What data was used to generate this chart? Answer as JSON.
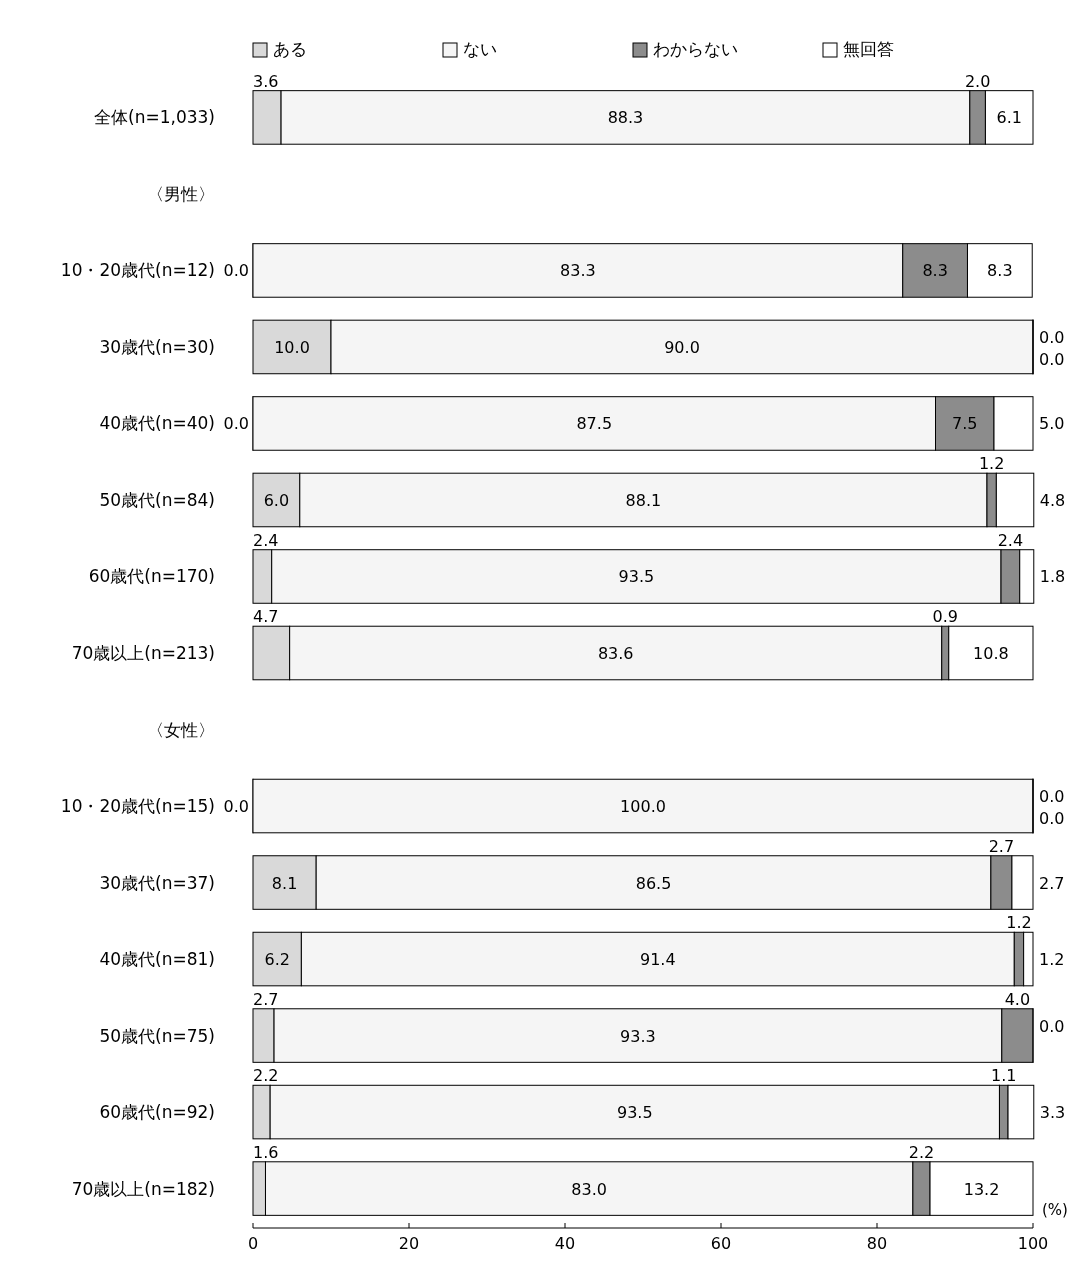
{
  "chart_data": {
    "type": "bar",
    "orientation": "horizontal",
    "stacked": true,
    "categories": [
      "全体(n=1,033)",
      "〈男性〉",
      "10・20歳代(n=12)",
      "30歳代(n=30)",
      "40歳代(n=40)",
      "50歳代(n=84)",
      "60歳代(n=170)",
      "70歳以上(n=213)",
      "〈女性〉",
      "10・20歳代(n=15)",
      "30歳代(n=37)",
      "40歳代(n=81)",
      "50歳代(n=75)",
      "60歳代(n=92)",
      "70歳以上(n=182)"
    ],
    "series": [
      {
        "name": "ある",
        "color": "#d9d9d9",
        "values": [
          3.6,
          null,
          0.0,
          10.0,
          0.0,
          6.0,
          2.4,
          4.7,
          null,
          0.0,
          8.1,
          6.2,
          2.7,
          2.2,
          1.6
        ],
        "value_labels": [
          "3.6",
          null,
          "0.0",
          "10.0",
          "0.0",
          "6.0",
          "2.4",
          "4.7",
          null,
          "0.0",
          "8.1",
          "6.2",
          "2.7",
          "2.2",
          "1.6"
        ]
      },
      {
        "name": "ない",
        "color": "#f5f5f5",
        "values": [
          88.3,
          null,
          83.3,
          90.0,
          87.5,
          88.1,
          93.5,
          83.6,
          null,
          100.0,
          86.5,
          91.4,
          93.3,
          93.5,
          83.0
        ],
        "value_labels": [
          "88.3",
          null,
          "83.3",
          "90.0",
          "87.5",
          "88.1",
          "93.5",
          "83.6",
          null,
          "100.0",
          "86.5",
          "91.4",
          "93.3",
          "93.5",
          "83.0"
        ]
      },
      {
        "name": "わからない",
        "color": "#8c8c8c",
        "values": [
          2.0,
          null,
          8.3,
          0.0,
          7.5,
          1.2,
          2.4,
          0.9,
          null,
          0.0,
          2.7,
          1.2,
          4.0,
          1.1,
          2.2
        ],
        "value_labels": [
          "2.0",
          null,
          "8.3",
          "0.0",
          "7.5",
          "1.2",
          "2.4",
          "0.9",
          null,
          "0.0",
          "2.7",
          "1.2",
          "4.0",
          "1.1",
          "2.2"
        ]
      },
      {
        "name": "無回答",
        "color": "#ffffff",
        "values": [
          6.1,
          null,
          8.3,
          0.0,
          5.0,
          4.8,
          1.8,
          10.8,
          null,
          0.0,
          2.7,
          1.2,
          0.0,
          3.3,
          13.2
        ],
        "value_labels": [
          "6.1",
          null,
          "8.3",
          "0.0",
          "5.0",
          "4.8",
          "1.8",
          "10.8",
          null,
          "0.0",
          "2.7",
          "1.2",
          "0.0",
          "3.3",
          "13.2"
        ]
      }
    ],
    "xlim": [
      0,
      100
    ],
    "xticks": [
      0,
      20,
      40,
      60,
      80,
      100
    ],
    "xlabel": "(%)",
    "legend": "top"
  }
}
